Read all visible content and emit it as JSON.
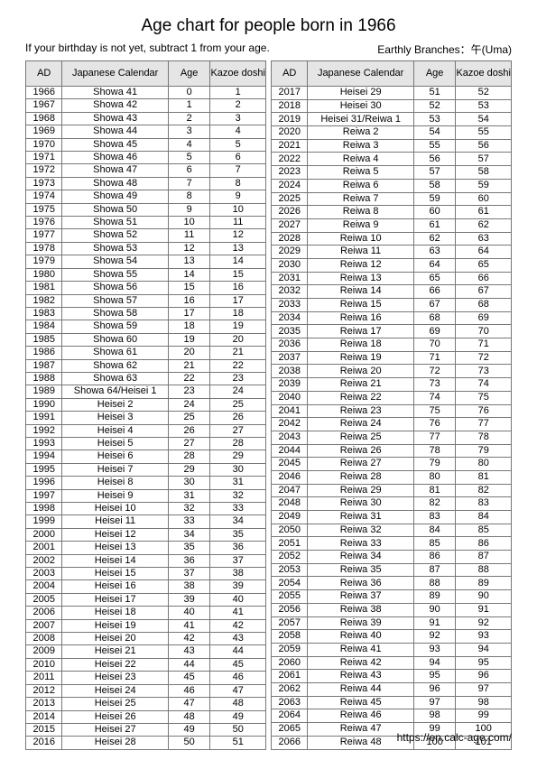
{
  "title": "Age chart for people born in 1966",
  "subtitle_left": "If your birthday is not yet, subtract 1 from your age.",
  "subtitle_right": "Earthly Branches：午(Uma)",
  "footer": "https://en.calc-age.com/",
  "headers": {
    "ad": "AD",
    "jp": "Japanese Calendar",
    "age": "Age",
    "kazoe": "Kazoe doshi"
  },
  "left": [
    {
      "ad": "1966",
      "jp": "Showa 41",
      "age": "0",
      "k": "1"
    },
    {
      "ad": "1967",
      "jp": "Showa 42",
      "age": "1",
      "k": "2"
    },
    {
      "ad": "1968",
      "jp": "Showa 43",
      "age": "2",
      "k": "3"
    },
    {
      "ad": "1969",
      "jp": "Showa 44",
      "age": "3",
      "k": "4"
    },
    {
      "ad": "1970",
      "jp": "Showa 45",
      "age": "4",
      "k": "5"
    },
    {
      "ad": "1971",
      "jp": "Showa 46",
      "age": "5",
      "k": "6"
    },
    {
      "ad": "1972",
      "jp": "Showa 47",
      "age": "6",
      "k": "7"
    },
    {
      "ad": "1973",
      "jp": "Showa 48",
      "age": "7",
      "k": "8"
    },
    {
      "ad": "1974",
      "jp": "Showa 49",
      "age": "8",
      "k": "9"
    },
    {
      "ad": "1975",
      "jp": "Showa 50",
      "age": "9",
      "k": "10"
    },
    {
      "ad": "1976",
      "jp": "Showa 51",
      "age": "10",
      "k": "11"
    },
    {
      "ad": "1977",
      "jp": "Showa 52",
      "age": "11",
      "k": "12"
    },
    {
      "ad": "1978",
      "jp": "Showa 53",
      "age": "12",
      "k": "13"
    },
    {
      "ad": "1979",
      "jp": "Showa 54",
      "age": "13",
      "k": "14"
    },
    {
      "ad": "1980",
      "jp": "Showa 55",
      "age": "14",
      "k": "15"
    },
    {
      "ad": "1981",
      "jp": "Showa 56",
      "age": "15",
      "k": "16"
    },
    {
      "ad": "1982",
      "jp": "Showa 57",
      "age": "16",
      "k": "17"
    },
    {
      "ad": "1983",
      "jp": "Showa 58",
      "age": "17",
      "k": "18"
    },
    {
      "ad": "1984",
      "jp": "Showa 59",
      "age": "18",
      "k": "19"
    },
    {
      "ad": "1985",
      "jp": "Showa 60",
      "age": "19",
      "k": "20"
    },
    {
      "ad": "1986",
      "jp": "Showa 61",
      "age": "20",
      "k": "21"
    },
    {
      "ad": "1987",
      "jp": "Showa 62",
      "age": "21",
      "k": "22"
    },
    {
      "ad": "1988",
      "jp": "Showa 63",
      "age": "22",
      "k": "23"
    },
    {
      "ad": "1989",
      "jp": "Showa 64/Heisei 1",
      "age": "23",
      "k": "24"
    },
    {
      "ad": "1990",
      "jp": "Heisei 2",
      "age": "24",
      "k": "25"
    },
    {
      "ad": "1991",
      "jp": "Heisei 3",
      "age": "25",
      "k": "26"
    },
    {
      "ad": "1992",
      "jp": "Heisei 4",
      "age": "26",
      "k": "27"
    },
    {
      "ad": "1993",
      "jp": "Heisei 5",
      "age": "27",
      "k": "28"
    },
    {
      "ad": "1994",
      "jp": "Heisei 6",
      "age": "28",
      "k": "29"
    },
    {
      "ad": "1995",
      "jp": "Heisei 7",
      "age": "29",
      "k": "30"
    },
    {
      "ad": "1996",
      "jp": "Heisei 8",
      "age": "30",
      "k": "31"
    },
    {
      "ad": "1997",
      "jp": "Heisei 9",
      "age": "31",
      "k": "32"
    },
    {
      "ad": "1998",
      "jp": "Heisei 10",
      "age": "32",
      "k": "33"
    },
    {
      "ad": "1999",
      "jp": "Heisei 11",
      "age": "33",
      "k": "34"
    },
    {
      "ad": "2000",
      "jp": "Heisei 12",
      "age": "34",
      "k": "35"
    },
    {
      "ad": "2001",
      "jp": "Heisei 13",
      "age": "35",
      "k": "36"
    },
    {
      "ad": "2002",
      "jp": "Heisei 14",
      "age": "36",
      "k": "37"
    },
    {
      "ad": "2003",
      "jp": "Heisei 15",
      "age": "37",
      "k": "38"
    },
    {
      "ad": "2004",
      "jp": "Heisei 16",
      "age": "38",
      "k": "39"
    },
    {
      "ad": "2005",
      "jp": "Heisei 17",
      "age": "39",
      "k": "40"
    },
    {
      "ad": "2006",
      "jp": "Heisei 18",
      "age": "40",
      "k": "41"
    },
    {
      "ad": "2007",
      "jp": "Heisei 19",
      "age": "41",
      "k": "42"
    },
    {
      "ad": "2008",
      "jp": "Heisei 20",
      "age": "42",
      "k": "43"
    },
    {
      "ad": "2009",
      "jp": "Heisei 21",
      "age": "43",
      "k": "44"
    },
    {
      "ad": "2010",
      "jp": "Heisei 22",
      "age": "44",
      "k": "45"
    },
    {
      "ad": "2011",
      "jp": "Heisei 23",
      "age": "45",
      "k": "46"
    },
    {
      "ad": "2012",
      "jp": "Heisei 24",
      "age": "46",
      "k": "47"
    },
    {
      "ad": "2013",
      "jp": "Heisei 25",
      "age": "47",
      "k": "48"
    },
    {
      "ad": "2014",
      "jp": "Heisei 26",
      "age": "48",
      "k": "49"
    },
    {
      "ad": "2015",
      "jp": "Heisei 27",
      "age": "49",
      "k": "50"
    },
    {
      "ad": "2016",
      "jp": "Heisei 28",
      "age": "50",
      "k": "51"
    }
  ],
  "right": [
    {
      "ad": "2017",
      "jp": "Heisei 29",
      "age": "51",
      "k": "52"
    },
    {
      "ad": "2018",
      "jp": "Heisei 30",
      "age": "52",
      "k": "53"
    },
    {
      "ad": "2019",
      "jp": "Heisei 31/Reiwa 1",
      "age": "53",
      "k": "54"
    },
    {
      "ad": "2020",
      "jp": "Reiwa 2",
      "age": "54",
      "k": "55"
    },
    {
      "ad": "2021",
      "jp": "Reiwa 3",
      "age": "55",
      "k": "56"
    },
    {
      "ad": "2022",
      "jp": "Reiwa 4",
      "age": "56",
      "k": "57"
    },
    {
      "ad": "2023",
      "jp": "Reiwa 5",
      "age": "57",
      "k": "58"
    },
    {
      "ad": "2024",
      "jp": "Reiwa 6",
      "age": "58",
      "k": "59"
    },
    {
      "ad": "2025",
      "jp": "Reiwa 7",
      "age": "59",
      "k": "60"
    },
    {
      "ad": "2026",
      "jp": "Reiwa 8",
      "age": "60",
      "k": "61"
    },
    {
      "ad": "2027",
      "jp": "Reiwa 9",
      "age": "61",
      "k": "62"
    },
    {
      "ad": "2028",
      "jp": "Reiwa 10",
      "age": "62",
      "k": "63"
    },
    {
      "ad": "2029",
      "jp": "Reiwa 11",
      "age": "63",
      "k": "64"
    },
    {
      "ad": "2030",
      "jp": "Reiwa 12",
      "age": "64",
      "k": "65"
    },
    {
      "ad": "2031",
      "jp": "Reiwa 13",
      "age": "65",
      "k": "66"
    },
    {
      "ad": "2032",
      "jp": "Reiwa 14",
      "age": "66",
      "k": "67"
    },
    {
      "ad": "2033",
      "jp": "Reiwa 15",
      "age": "67",
      "k": "68"
    },
    {
      "ad": "2034",
      "jp": "Reiwa 16",
      "age": "68",
      "k": "69"
    },
    {
      "ad": "2035",
      "jp": "Reiwa 17",
      "age": "69",
      "k": "70"
    },
    {
      "ad": "2036",
      "jp": "Reiwa 18",
      "age": "70",
      "k": "71"
    },
    {
      "ad": "2037",
      "jp": "Reiwa 19",
      "age": "71",
      "k": "72"
    },
    {
      "ad": "2038",
      "jp": "Reiwa 20",
      "age": "72",
      "k": "73"
    },
    {
      "ad": "2039",
      "jp": "Reiwa 21",
      "age": "73",
      "k": "74"
    },
    {
      "ad": "2040",
      "jp": "Reiwa 22",
      "age": "74",
      "k": "75"
    },
    {
      "ad": "2041",
      "jp": "Reiwa 23",
      "age": "75",
      "k": "76"
    },
    {
      "ad": "2042",
      "jp": "Reiwa 24",
      "age": "76",
      "k": "77"
    },
    {
      "ad": "2043",
      "jp": "Reiwa 25",
      "age": "77",
      "k": "78"
    },
    {
      "ad": "2044",
      "jp": "Reiwa 26",
      "age": "78",
      "k": "79"
    },
    {
      "ad": "2045",
      "jp": "Reiwa 27",
      "age": "79",
      "k": "80"
    },
    {
      "ad": "2046",
      "jp": "Reiwa 28",
      "age": "80",
      "k": "81"
    },
    {
      "ad": "2047",
      "jp": "Reiwa 29",
      "age": "81",
      "k": "82"
    },
    {
      "ad": "2048",
      "jp": "Reiwa 30",
      "age": "82",
      "k": "83"
    },
    {
      "ad": "2049",
      "jp": "Reiwa 31",
      "age": "83",
      "k": "84"
    },
    {
      "ad": "2050",
      "jp": "Reiwa 32",
      "age": "84",
      "k": "85"
    },
    {
      "ad": "2051",
      "jp": "Reiwa 33",
      "age": "85",
      "k": "86"
    },
    {
      "ad": "2052",
      "jp": "Reiwa 34",
      "age": "86",
      "k": "87"
    },
    {
      "ad": "2053",
      "jp": "Reiwa 35",
      "age": "87",
      "k": "88"
    },
    {
      "ad": "2054",
      "jp": "Reiwa 36",
      "age": "88",
      "k": "89"
    },
    {
      "ad": "2055",
      "jp": "Reiwa 37",
      "age": "89",
      "k": "90"
    },
    {
      "ad": "2056",
      "jp": "Reiwa 38",
      "age": "90",
      "k": "91"
    },
    {
      "ad": "2057",
      "jp": "Reiwa 39",
      "age": "91",
      "k": "92"
    },
    {
      "ad": "2058",
      "jp": "Reiwa 40",
      "age": "92",
      "k": "93"
    },
    {
      "ad": "2059",
      "jp": "Reiwa 41",
      "age": "93",
      "k": "94"
    },
    {
      "ad": "2060",
      "jp": "Reiwa 42",
      "age": "94",
      "k": "95"
    },
    {
      "ad": "2061",
      "jp": "Reiwa 43",
      "age": "95",
      "k": "96"
    },
    {
      "ad": "2062",
      "jp": "Reiwa 44",
      "age": "96",
      "k": "97"
    },
    {
      "ad": "2063",
      "jp": "Reiwa 45",
      "age": "97",
      "k": "98"
    },
    {
      "ad": "2064",
      "jp": "Reiwa 46",
      "age": "98",
      "k": "99"
    },
    {
      "ad": "2065",
      "jp": "Reiwa 47",
      "age": "99",
      "k": "100"
    },
    {
      "ad": "2066",
      "jp": "Reiwa 48",
      "age": "100",
      "k": "101"
    }
  ]
}
